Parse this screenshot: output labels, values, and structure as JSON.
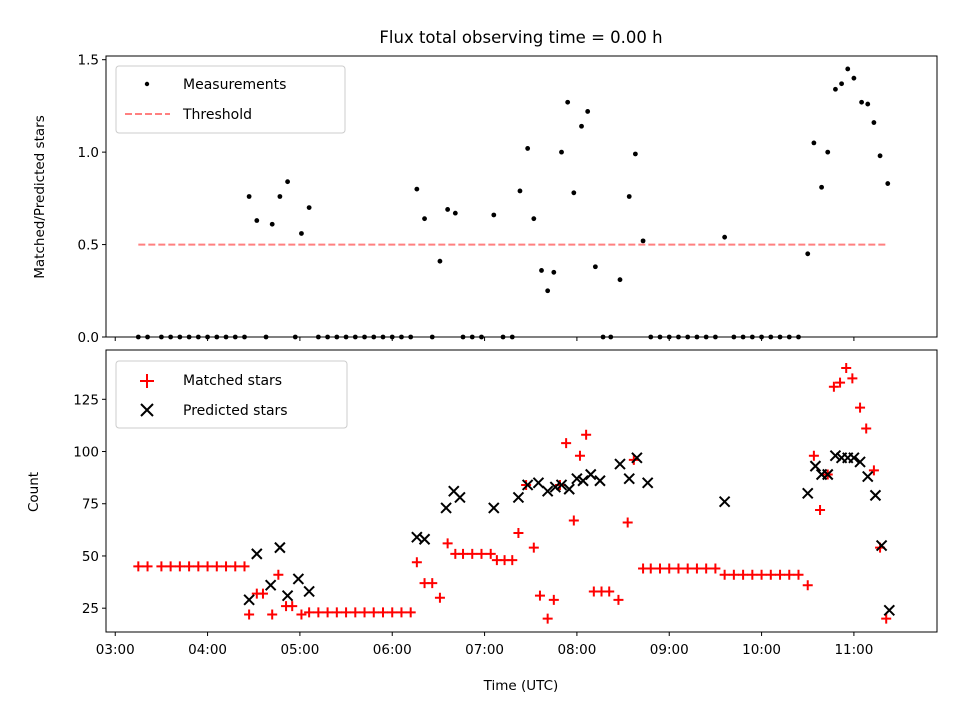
{
  "figure_title": "Flux total observing time = 0.00 h",
  "x_axis_label": "Time (UTC)",
  "top_panel": {
    "ylabel": "Matched/Predicted stars"
  },
  "bottom_panel": {
    "ylabel": "Count"
  },
  "chart_data": [
    {
      "type": "scatter",
      "title": "Flux total observing time = 0.00 h",
      "xlabel": "",
      "ylabel": "Matched/Predicted stars",
      "xlim": [
        "02:54",
        "11:54"
      ],
      "ylim": [
        0,
        1.52
      ],
      "x_ticks": [
        "03:00",
        "04:00",
        "05:00",
        "06:00",
        "07:00",
        "08:00",
        "09:00",
        "10:00",
        "11:00"
      ],
      "y_ticks": [
        0.0,
        0.5,
        1.0,
        1.5
      ],
      "y_tick_labels": [
        "0.0",
        "0.5",
        "1.0",
        "1.5"
      ],
      "legend_position": "top-left",
      "series": [
        {
          "name": "Measurements",
          "marker": "dot",
          "color": "#000000",
          "points": [
            [
              "03:15",
              0
            ],
            [
              "03:21",
              0
            ],
            [
              "03:30",
              0
            ],
            [
              "03:36",
              0
            ],
            [
              "03:42",
              0
            ],
            [
              "03:48",
              0
            ],
            [
              "03:54",
              0
            ],
            [
              "04:00",
              0
            ],
            [
              "04:06",
              0
            ],
            [
              "04:12",
              0
            ],
            [
              "04:18",
              0
            ],
            [
              "04:24",
              0
            ],
            [
              "04:27",
              0.76
            ],
            [
              "04:32",
              0.63
            ],
            [
              "04:38",
              0
            ],
            [
              "04:42",
              0.61
            ],
            [
              "04:47",
              0.76
            ],
            [
              "04:52",
              0.84
            ],
            [
              "04:57",
              0
            ],
            [
              "05:01",
              0.56
            ],
            [
              "05:06",
              0.7
            ],
            [
              "05:12",
              0
            ],
            [
              "05:18",
              0
            ],
            [
              "05:24",
              0
            ],
            [
              "05:30",
              0
            ],
            [
              "05:36",
              0
            ],
            [
              "05:42",
              0
            ],
            [
              "05:48",
              0
            ],
            [
              "05:54",
              0
            ],
            [
              "06:00",
              0
            ],
            [
              "06:06",
              0
            ],
            [
              "06:12",
              0
            ],
            [
              "06:16",
              0.8
            ],
            [
              "06:21",
              0.64
            ],
            [
              "06:26",
              0
            ],
            [
              "06:31",
              0.41
            ],
            [
              "06:36",
              0.69
            ],
            [
              "06:41",
              0.67
            ],
            [
              "06:46",
              0
            ],
            [
              "06:52",
              0
            ],
            [
              "06:58",
              0
            ],
            [
              "07:06",
              0.66
            ],
            [
              "07:12",
              0
            ],
            [
              "07:18",
              0
            ],
            [
              "07:23",
              0.79
            ],
            [
              "07:28",
              1.02
            ],
            [
              "07:32",
              0.64
            ],
            [
              "07:37",
              0.36
            ],
            [
              "07:41",
              0.25
            ],
            [
              "07:45",
              0.35
            ],
            [
              "07:50",
              1.0
            ],
            [
              "07:54",
              1.27
            ],
            [
              "07:58",
              0.78
            ],
            [
              "08:03",
              1.14
            ],
            [
              "08:07",
              1.22
            ],
            [
              "08:12",
              0.38
            ],
            [
              "08:17",
              0
            ],
            [
              "08:22",
              0
            ],
            [
              "08:28",
              0.31
            ],
            [
              "08:34",
              0.76
            ],
            [
              "08:38",
              0.99
            ],
            [
              "08:43",
              0.52
            ],
            [
              "08:48",
              0
            ],
            [
              "08:54",
              0
            ],
            [
              "09:00",
              0
            ],
            [
              "09:06",
              0
            ],
            [
              "09:12",
              0
            ],
            [
              "09:18",
              0
            ],
            [
              "09:24",
              0
            ],
            [
              "09:30",
              0
            ],
            [
              "09:36",
              0.54
            ],
            [
              "09:42",
              0
            ],
            [
              "09:48",
              0
            ],
            [
              "09:54",
              0
            ],
            [
              "10:00",
              0
            ],
            [
              "10:06",
              0
            ],
            [
              "10:12",
              0
            ],
            [
              "10:18",
              0
            ],
            [
              "10:24",
              0
            ],
            [
              "10:30",
              0.45
            ],
            [
              "10:34",
              1.05
            ],
            [
              "10:39",
              0.81
            ],
            [
              "10:43",
              1.0
            ],
            [
              "10:48",
              1.34
            ],
            [
              "10:52",
              1.37
            ],
            [
              "10:56",
              1.45
            ],
            [
              "11:00",
              1.4
            ],
            [
              "11:05",
              1.27
            ],
            [
              "11:09",
              1.26
            ],
            [
              "11:13",
              1.16
            ],
            [
              "11:17",
              0.98
            ],
            [
              "11:22",
              0.83
            ]
          ]
        },
        {
          "name": "Threshold",
          "style": "dashed",
          "color": "#ff8080",
          "points": [
            [
              "03:15",
              0.5
            ],
            [
              "11:22",
              0.5
            ]
          ]
        }
      ]
    },
    {
      "type": "scatter",
      "title": "",
      "xlabel": "Time (UTC)",
      "ylabel": "Count",
      "xlim": [
        "02:54",
        "11:54"
      ],
      "ylim": [
        13.6,
        148.6
      ],
      "x_ticks": [
        "03:00",
        "04:00",
        "05:00",
        "06:00",
        "07:00",
        "08:00",
        "09:00",
        "10:00",
        "11:00"
      ],
      "x_tick_labels": [
        "03:00",
        "04:00",
        "05:00",
        "06:00",
        "07:00",
        "08:00",
        "09:00",
        "10:00",
        "11:00"
      ],
      "y_ticks": [
        25,
        50,
        75,
        100,
        125
      ],
      "y_tick_labels": [
        "25",
        "50",
        "75",
        "100",
        "125"
      ],
      "legend_position": "top-left",
      "series": [
        {
          "name": "Matched stars",
          "marker": "plus",
          "color": "#ff0000",
          "points": [
            [
              "03:15",
              45
            ],
            [
              "03:21",
              45
            ],
            [
              "03:30",
              45
            ],
            [
              "03:36",
              45
            ],
            [
              "03:42",
              45
            ],
            [
              "03:48",
              45
            ],
            [
              "03:54",
              45
            ],
            [
              "04:00",
              45
            ],
            [
              "04:06",
              45
            ],
            [
              "04:12",
              45
            ],
            [
              "04:18",
              45
            ],
            [
              "04:24",
              45
            ],
            [
              "04:27",
              22
            ],
            [
              "04:32",
              32
            ],
            [
              "04:36",
              32
            ],
            [
              "04:42",
              22
            ],
            [
              "04:46",
              41
            ],
            [
              "04:51",
              26
            ],
            [
              "04:55",
              26
            ],
            [
              "05:01",
              22
            ],
            [
              "05:06",
              23
            ],
            [
              "05:12",
              23
            ],
            [
              "05:18",
              23
            ],
            [
              "05:24",
              23
            ],
            [
              "05:30",
              23
            ],
            [
              "05:36",
              23
            ],
            [
              "05:42",
              23
            ],
            [
              "05:48",
              23
            ],
            [
              "05:54",
              23
            ],
            [
              "06:00",
              23
            ],
            [
              "06:06",
              23
            ],
            [
              "06:12",
              23
            ],
            [
              "06:16",
              47
            ],
            [
              "06:21",
              37
            ],
            [
              "06:26",
              37
            ],
            [
              "06:31",
              30
            ],
            [
              "06:36",
              56
            ],
            [
              "06:41",
              51
            ],
            [
              "06:46",
              51
            ],
            [
              "06:52",
              51
            ],
            [
              "06:58",
              51
            ],
            [
              "07:04",
              51
            ],
            [
              "07:08",
              48
            ],
            [
              "07:13",
              48
            ],
            [
              "07:18",
              48
            ],
            [
              "07:22",
              61
            ],
            [
              "07:27",
              84
            ],
            [
              "07:32",
              54
            ],
            [
              "07:36",
              31
            ],
            [
              "07:41",
              20
            ],
            [
              "07:45",
              29
            ],
            [
              "07:49",
              84
            ],
            [
              "07:53",
              104
            ],
            [
              "07:58",
              67
            ],
            [
              "08:02",
              98
            ],
            [
              "08:06",
              108
            ],
            [
              "08:11",
              33
            ],
            [
              "08:16",
              33
            ],
            [
              "08:21",
              33
            ],
            [
              "08:27",
              29
            ],
            [
              "08:33",
              66
            ],
            [
              "08:37",
              96
            ],
            [
              "08:43",
              44
            ],
            [
              "08:48",
              44
            ],
            [
              "08:54",
              44
            ],
            [
              "09:00",
              44
            ],
            [
              "09:06",
              44
            ],
            [
              "09:12",
              44
            ],
            [
              "09:18",
              44
            ],
            [
              "09:24",
              44
            ],
            [
              "09:30",
              44
            ],
            [
              "09:36",
              41
            ],
            [
              "09:42",
              41
            ],
            [
              "09:48",
              41
            ],
            [
              "09:54",
              41
            ],
            [
              "10:00",
              41
            ],
            [
              "10:06",
              41
            ],
            [
              "10:12",
              41
            ],
            [
              "10:18",
              41
            ],
            [
              "10:24",
              41
            ],
            [
              "10:30",
              36
            ],
            [
              "10:34",
              98
            ],
            [
              "10:38",
              72
            ],
            [
              "10:43",
              89
            ],
            [
              "10:47",
              131
            ],
            [
              "10:51",
              133
            ],
            [
              "10:55",
              140
            ],
            [
              "10:59",
              135
            ],
            [
              "11:04",
              121
            ],
            [
              "11:08",
              111
            ],
            [
              "11:13",
              91
            ],
            [
              "11:17",
              54
            ],
            [
              "11:21",
              20
            ]
          ]
        },
        {
          "name": "Predicted stars",
          "marker": "x",
          "color": "#000000",
          "points": [
            [
              "04:27",
              29
            ],
            [
              "04:32",
              51
            ],
            [
              "04:41",
              36
            ],
            [
              "04:47",
              54
            ],
            [
              "04:52",
              31
            ],
            [
              "04:59",
              39
            ],
            [
              "05:06",
              33
            ],
            [
              "06:16",
              59
            ],
            [
              "06:21",
              58
            ],
            [
              "06:35",
              73
            ],
            [
              "06:40",
              81
            ],
            [
              "06:44",
              78
            ],
            [
              "07:06",
              73
            ],
            [
              "07:22",
              78
            ],
            [
              "07:28",
              84
            ],
            [
              "07:35",
              85
            ],
            [
              "07:41",
              81
            ],
            [
              "07:46",
              83
            ],
            [
              "07:50",
              84
            ],
            [
              "07:55",
              82
            ],
            [
              "08:00",
              87
            ],
            [
              "08:04",
              86
            ],
            [
              "08:09",
              89
            ],
            [
              "08:15",
              86
            ],
            [
              "08:28",
              94
            ],
            [
              "08:34",
              87
            ],
            [
              "08:39",
              97
            ],
            [
              "08:46",
              85
            ],
            [
              "09:36",
              76
            ],
            [
              "10:30",
              80
            ],
            [
              "10:35",
              93
            ],
            [
              "10:39",
              89
            ],
            [
              "10:43",
              89
            ],
            [
              "10:48",
              98
            ],
            [
              "10:52",
              97
            ],
            [
              "10:56",
              97
            ],
            [
              "11:00",
              97
            ],
            [
              "11:04",
              95
            ],
            [
              "11:09",
              88
            ],
            [
              "11:14",
              79
            ],
            [
              "11:18",
              55
            ],
            [
              "11:23",
              24
            ]
          ]
        }
      ]
    }
  ]
}
